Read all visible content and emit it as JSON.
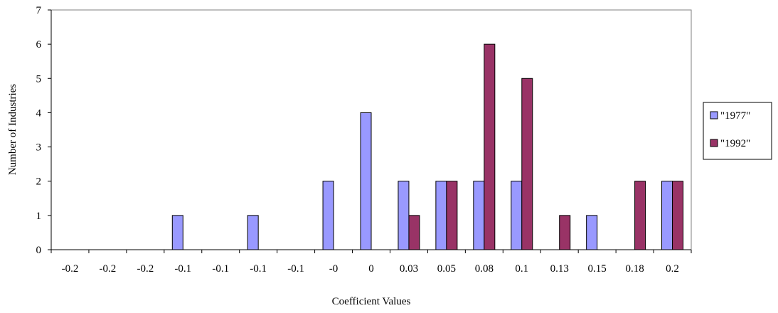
{
  "chart_data": {
    "type": "bar",
    "title": "",
    "xlabel": "Coefficient Values",
    "ylabel": "Number of Industries",
    "ylim": [
      0,
      7
    ],
    "yticks": [
      0,
      1,
      2,
      3,
      4,
      5,
      6,
      7
    ],
    "grid": false,
    "legend_position": "right",
    "categories": [
      "-0.2",
      "-0.2",
      "-0.2",
      "-0.1",
      "-0.1",
      "-0.1",
      "-0.1",
      "-0",
      "0",
      "0.03",
      "0.05",
      "0.08",
      "0.1",
      "0.13",
      "0.15",
      "0.18",
      "0.2"
    ],
    "series": [
      {
        "name": "\"1977\"",
        "color": "#9999ff",
        "values": [
          0,
          0,
          0,
          1,
          0,
          1,
          0,
          2,
          4,
          2,
          2,
          2,
          2,
          0,
          1,
          0,
          2
        ]
      },
      {
        "name": "\"1992\"",
        "color": "#993366",
        "values": [
          0,
          0,
          0,
          0,
          0,
          0,
          0,
          0,
          0,
          1,
          2,
          6,
          5,
          1,
          0,
          2,
          2
        ]
      }
    ]
  }
}
